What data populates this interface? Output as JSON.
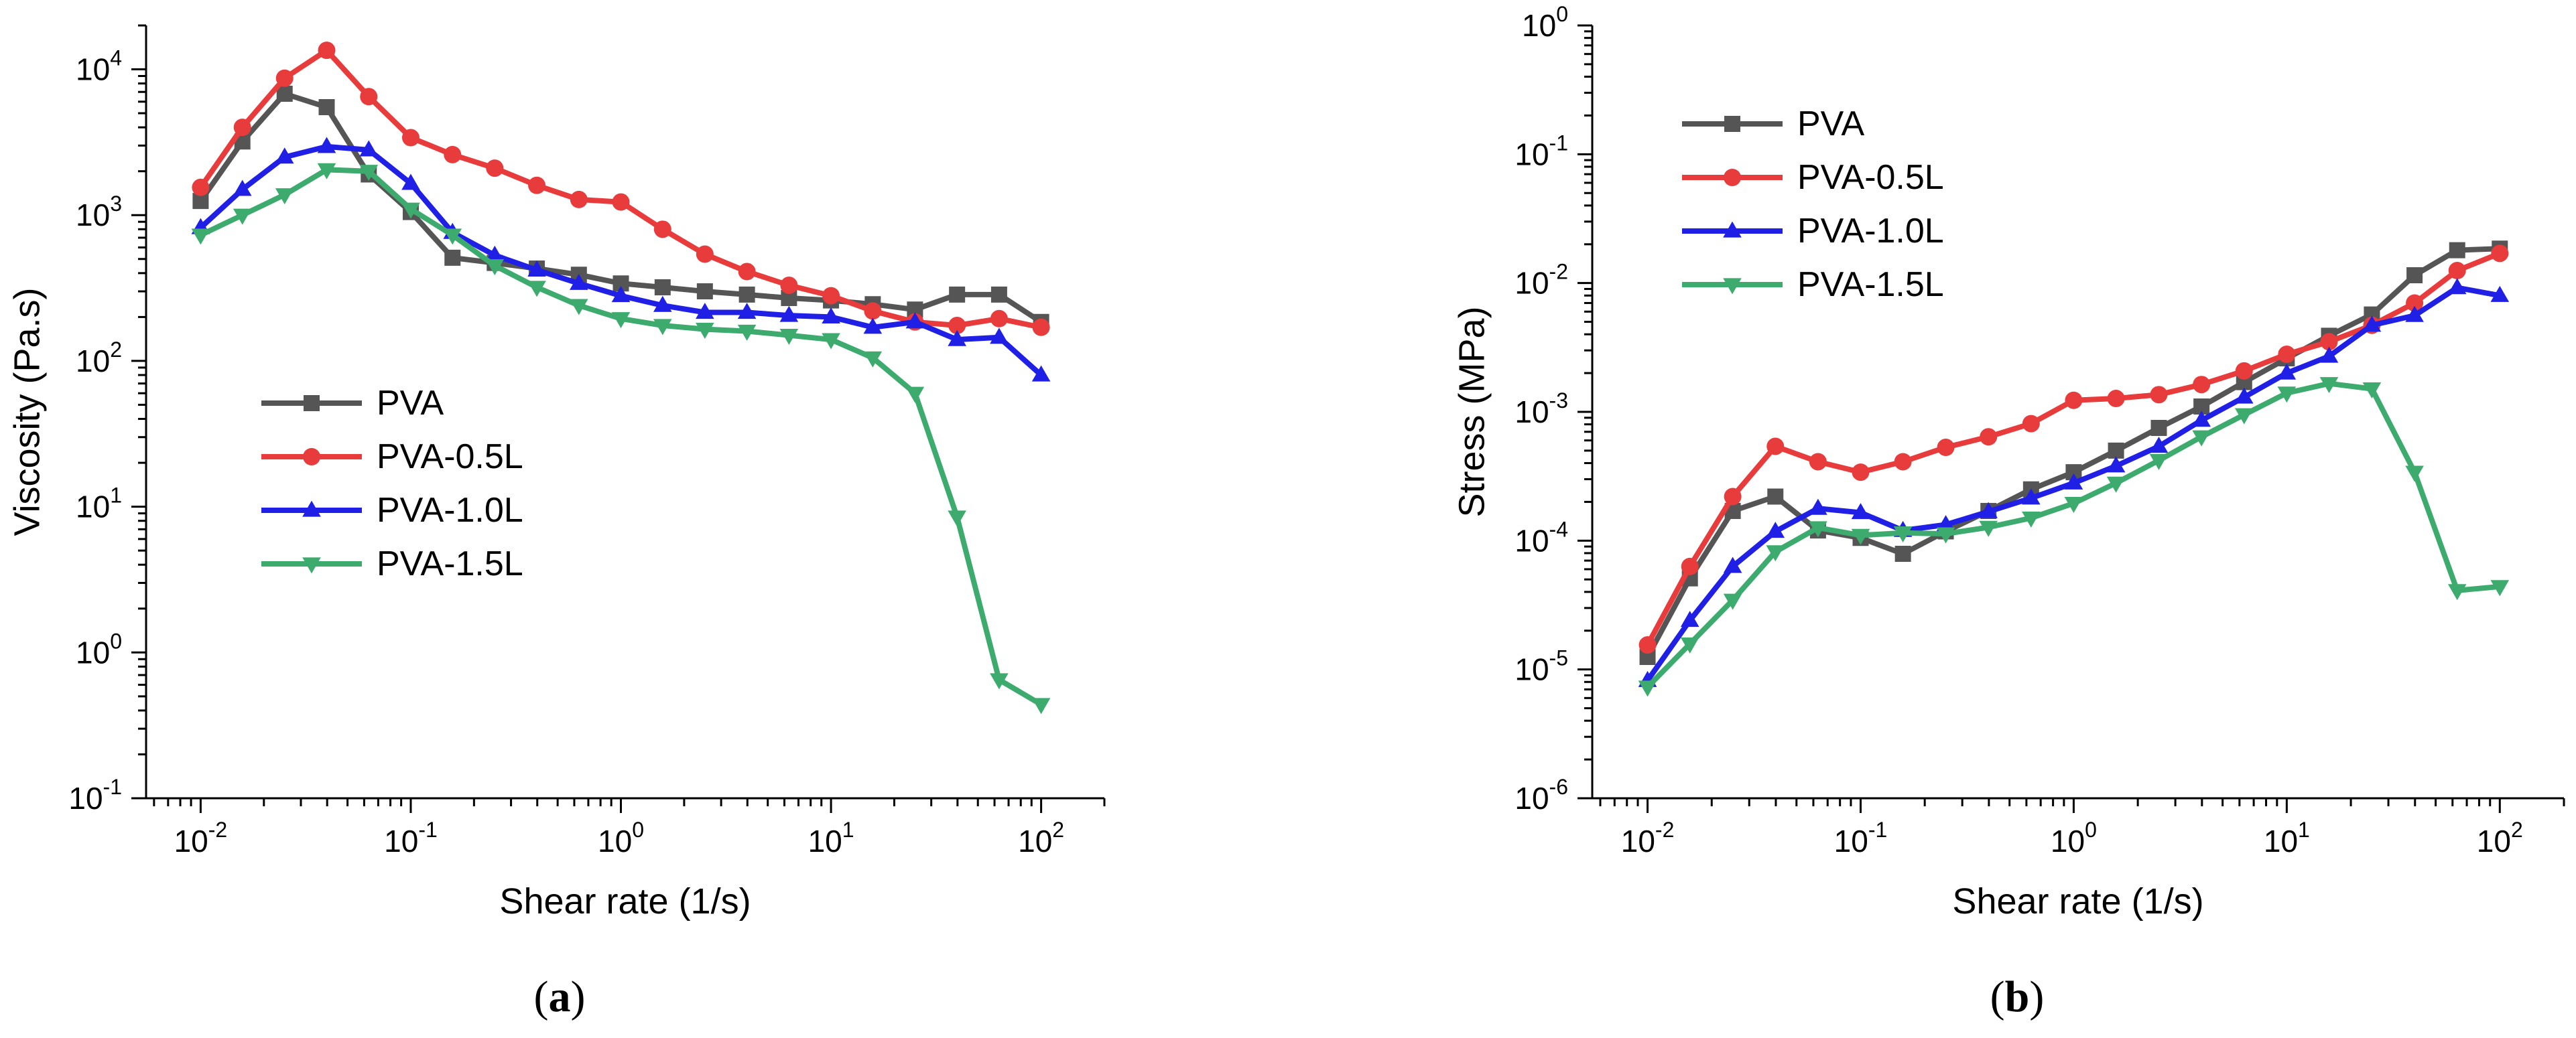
{
  "chart_data": [
    {
      "type": "line",
      "panel": "(a)",
      "panel_letter": "a",
      "title": "",
      "xlabel": "Shear rate (1/s)",
      "ylabel": "Viscosity (Pa.s)",
      "xscale": "log",
      "yscale": "log",
      "xlim": [
        0.0055,
        200
      ],
      "ylim": [
        0.1,
        20000
      ],
      "x_ticks": [
        {
          "base": "10",
          "exp": "-2",
          "value": 0.01
        },
        {
          "base": "10",
          "exp": "-1",
          "value": 0.1
        },
        {
          "base": "10",
          "exp": "0",
          "value": 1
        },
        {
          "base": "10",
          "exp": "1",
          "value": 10
        },
        {
          "base": "10",
          "exp": "2",
          "value": 100
        }
      ],
      "y_ticks": [
        {
          "base": "10",
          "exp": "-1",
          "value": 0.1
        },
        {
          "base": "10",
          "exp": "0",
          "value": 1
        },
        {
          "base": "10",
          "exp": "1",
          "value": 10
        },
        {
          "base": "10",
          "exp": "2",
          "value": 100
        },
        {
          "base": "10",
          "exp": "3",
          "value": 1000
        },
        {
          "base": "10",
          "exp": "4",
          "value": 10000
        }
      ],
      "legend_position": "center-left",
      "x": [
        0.01,
        0.0158,
        0.0251,
        0.0398,
        0.0631,
        0.1,
        0.158,
        0.251,
        0.398,
        0.631,
        1,
        1.58,
        2.51,
        3.98,
        6.31,
        10,
        15.8,
        25.1,
        39.8,
        63.1,
        100
      ],
      "series": [
        {
          "name": "PVA",
          "color": "#555555",
          "marker": "square",
          "values": [
            1250,
            3200,
            6800,
            5500,
            1900,
            1050,
            510,
            470,
            430,
            390,
            340,
            320,
            300,
            285,
            270,
            260,
            245,
            225,
            285,
            285,
            185
          ]
        },
        {
          "name": "PVA-0.5L",
          "color": "#e83c3c",
          "marker": "circle",
          "values": [
            1550,
            4000,
            8700,
            13500,
            6500,
            3400,
            2600,
            2100,
            1600,
            1280,
            1230,
            800,
            540,
            410,
            330,
            280,
            220,
            185,
            175,
            195,
            170
          ]
        },
        {
          "name": "PVA-1.0L",
          "color": "#1f1fe6",
          "marker": "triangle-up",
          "values": [
            820,
            1500,
            2500,
            2950,
            2800,
            1650,
            760,
            530,
            420,
            340,
            280,
            240,
            215,
            215,
            205,
            200,
            170,
            185,
            140,
            145,
            80
          ]
        },
        {
          "name": "PVA-1.5L",
          "color": "#3daa6e",
          "marker": "triangle-down",
          "values": [
            730,
            1000,
            1380,
            2050,
            2000,
            1100,
            730,
            450,
            320,
            240,
            195,
            175,
            165,
            160,
            150,
            140,
            105,
            60,
            8.5,
            0.65,
            0.44
          ]
        }
      ]
    },
    {
      "type": "line",
      "panel": "(b)",
      "panel_letter": "b",
      "title": "",
      "xlabel": "Shear rate (1/s)",
      "ylabel": "Stress (MPa)",
      "xscale": "log",
      "yscale": "log",
      "xlim": [
        0.0055,
        200
      ],
      "ylim": [
        1e-06,
        1
      ],
      "x_ticks": [
        {
          "base": "10",
          "exp": "-2",
          "value": 0.01
        },
        {
          "base": "10",
          "exp": "-1",
          "value": 0.1
        },
        {
          "base": "10",
          "exp": "0",
          "value": 1
        },
        {
          "base": "10",
          "exp": "1",
          "value": 10
        },
        {
          "base": "10",
          "exp": "2",
          "value": 100
        }
      ],
      "y_ticks": [
        {
          "base": "10",
          "exp": "-6",
          "value": 1e-06
        },
        {
          "base": "10",
          "exp": "-5",
          "value": 1e-05
        },
        {
          "base": "10",
          "exp": "-4",
          "value": 0.0001
        },
        {
          "base": "10",
          "exp": "-3",
          "value": 0.001
        },
        {
          "base": "10",
          "exp": "-2",
          "value": 0.01
        },
        {
          "base": "10",
          "exp": "-1",
          "value": 0.1
        },
        {
          "base": "10",
          "exp": "0",
          "value": 1
        }
      ],
      "legend_position": "top-left",
      "x": [
        0.01,
        0.0158,
        0.0251,
        0.0398,
        0.0631,
        0.1,
        0.158,
        0.251,
        0.398,
        0.631,
        1,
        1.58,
        2.51,
        3.98,
        6.31,
        10,
        15.8,
        25.1,
        39.8,
        63.1,
        100
      ],
      "series": [
        {
          "name": "PVA",
          "color": "#555555",
          "marker": "square",
          "values": [
            1.25e-05,
            5.1e-05,
            0.00017,
            0.00022,
            0.00012,
            0.000105,
            7.9e-05,
            0.000118,
            0.00017,
            0.00025,
            0.00034,
            0.0005,
            0.00075,
            0.0011,
            0.0017,
            0.0026,
            0.0039,
            0.0057,
            0.0115,
            0.018,
            0.0185
          ]
        },
        {
          "name": "PVA-0.5L",
          "color": "#e83c3c",
          "marker": "circle",
          "values": [
            1.55e-05,
            6.3e-05,
            0.00022,
            0.00054,
            0.00041,
            0.00034,
            0.00041,
            0.00053,
            0.00064,
            0.00081,
            0.00123,
            0.00127,
            0.00136,
            0.00163,
            0.00208,
            0.0028,
            0.0035,
            0.0047,
            0.007,
            0.0125,
            0.017
          ]
        },
        {
          "name": "PVA-1.0L",
          "color": "#1f1fe6",
          "marker": "triangle-up",
          "values": [
            8.2e-06,
            2.4e-05,
            6.3e-05,
            0.000118,
            0.000178,
            0.000165,
            0.00012,
            0.000133,
            0.000168,
            0.000214,
            0.00028,
            0.00038,
            0.00054,
            0.00086,
            0.0013,
            0.002,
            0.0027,
            0.0047,
            0.0056,
            0.0092,
            0.008
          ]
        },
        {
          "name": "PVA-1.5L",
          "color": "#3daa6e",
          "marker": "triangle-down",
          "values": [
            7.3e-06,
            1.58e-05,
            3.45e-05,
            8.2e-05,
            0.000126,
            0.00011,
            0.000115,
            0.000113,
            0.000127,
            0.00015,
            0.000195,
            0.00028,
            0.00042,
            0.00064,
            0.00095,
            0.0014,
            0.00166,
            0.00151,
            0.00034,
            4.1e-05,
            4.4e-05
          ]
        }
      ]
    }
  ]
}
